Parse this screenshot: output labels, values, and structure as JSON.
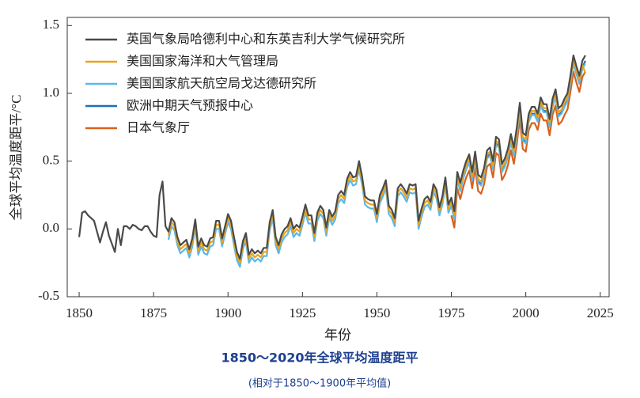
{
  "chart_data": {
    "type": "line",
    "title": "1850～2020年全球平均温度距平",
    "subtitle": "(相对于1850～1900年平均值)",
    "x_label": "年份",
    "y_label": "全球平均温度距平/°C",
    "xlim": [
      1846,
      2028
    ],
    "ylim": [
      -0.5,
      1.56
    ],
    "xticks": [
      1850,
      1875,
      1900,
      1925,
      1950,
      1975,
      2000,
      2025
    ],
    "yticks": [
      1.5,
      {
        "value": 1,
        "label": "1.0"
      },
      0.5,
      {
        "value": 0,
        "label": "0.0"
      },
      -0.5
    ],
    "legend": "upper left",
    "x": [
      1850,
      1851,
      1852,
      1853,
      1854,
      1855,
      1856,
      1857,
      1858,
      1859,
      1860,
      1861,
      1862,
      1863,
      1864,
      1865,
      1866,
      1867,
      1868,
      1869,
      1870,
      1871,
      1872,
      1873,
      1874,
      1875,
      1876,
      1877,
      1878,
      1879,
      1880,
      1881,
      1882,
      1883,
      1884,
      1885,
      1886,
      1887,
      1888,
      1889,
      1890,
      1891,
      1892,
      1893,
      1894,
      1895,
      1896,
      1897,
      1898,
      1899,
      1900,
      1901,
      1902,
      1903,
      1904,
      1905,
      1906,
      1907,
      1908,
      1909,
      1910,
      1911,
      1912,
      1913,
      1914,
      1915,
      1916,
      1917,
      1918,
      1919,
      1920,
      1921,
      1922,
      1923,
      1924,
      1925,
      1926,
      1927,
      1928,
      1929,
      1930,
      1931,
      1932,
      1933,
      1934,
      1935,
      1936,
      1937,
      1938,
      1939,
      1940,
      1941,
      1942,
      1943,
      1944,
      1945,
      1946,
      1947,
      1948,
      1949,
      1950,
      1951,
      1952,
      1953,
      1954,
      1955,
      1956,
      1957,
      1958,
      1959,
      1960,
      1961,
      1962,
      1963,
      1964,
      1965,
      1966,
      1967,
      1968,
      1969,
      1970,
      1971,
      1972,
      1973,
      1974,
      1975,
      1976,
      1977,
      1978,
      1979,
      1980,
      1981,
      1982,
      1983,
      1984,
      1985,
      1986,
      1987,
      1988,
      1989,
      1990,
      1991,
      1992,
      1993,
      1994,
      1995,
      1996,
      1997,
      1998,
      1999,
      2000,
      2001,
      2002,
      2003,
      2004,
      2005,
      2006,
      2007,
      2008,
      2009,
      2010,
      2011,
      2012,
      2013,
      2014,
      2015,
      2016,
      2017,
      2018,
      2019,
      2020
    ],
    "series": [
      {
        "name": "英国气象局哈德利中心和东英吉利大学气候研究所",
        "color": "#4a4a4a",
        "values": [
          -0.06,
          0.12,
          0.13,
          0.1,
          0.08,
          0.06,
          -0.02,
          -0.1,
          -0.02,
          0.05,
          -0.05,
          -0.11,
          -0.17,
          0.0,
          -0.12,
          0.02,
          0.02,
          0.0,
          0.03,
          0.02,
          0.0,
          -0.01,
          0.02,
          0.02,
          -0.02,
          -0.05,
          -0.06,
          0.25,
          0.35,
          0.02,
          -0.02,
          0.08,
          0.05,
          -0.06,
          -0.12,
          -0.1,
          -0.08,
          -0.15,
          -0.07,
          0.07,
          -0.13,
          -0.07,
          -0.12,
          -0.13,
          -0.07,
          -0.06,
          0.06,
          0.06,
          -0.07,
          0.02,
          0.11,
          0.06,
          -0.06,
          -0.17,
          -0.22,
          -0.09,
          -0.03,
          -0.19,
          -0.15,
          -0.18,
          -0.16,
          -0.18,
          -0.14,
          -0.14,
          0.05,
          0.14,
          -0.06,
          -0.12,
          -0.04,
          0.0,
          0.02,
          0.08,
          0.0,
          0.03,
          0.01,
          0.09,
          0.18,
          0.1,
          0.1,
          -0.03,
          0.12,
          0.17,
          0.14,
          0.01,
          0.14,
          0.09,
          0.13,
          0.25,
          0.28,
          0.25,
          0.37,
          0.42,
          0.38,
          0.39,
          0.5,
          0.39,
          0.24,
          0.22,
          0.21,
          0.21,
          0.11,
          0.25,
          0.3,
          0.36,
          0.17,
          0.14,
          0.08,
          0.3,
          0.33,
          0.3,
          0.26,
          0.33,
          0.32,
          0.33,
          0.06,
          0.15,
          0.22,
          0.24,
          0.2,
          0.33,
          0.29,
          0.16,
          0.24,
          0.38,
          0.18,
          0.23,
          0.13,
          0.42,
          0.34,
          0.43,
          0.5,
          0.55,
          0.42,
          0.57,
          0.4,
          0.38,
          0.45,
          0.58,
          0.6,
          0.5,
          0.68,
          0.66,
          0.48,
          0.52,
          0.59,
          0.7,
          0.6,
          0.75,
          0.93,
          0.71,
          0.69,
          0.85,
          0.9,
          0.9,
          0.85,
          0.97,
          0.92,
          0.92,
          0.81,
          0.96,
          1.03,
          0.89,
          0.91,
          0.96,
          1.0,
          1.13,
          1.28,
          1.2,
          1.13,
          1.24,
          1.28
        ]
      },
      {
        "name": "美国国家海洋和大气管理局",
        "color": "#e8a31c",
        "values": [
          null,
          null,
          null,
          null,
          null,
          null,
          null,
          null,
          null,
          null,
          null,
          null,
          null,
          null,
          null,
          null,
          null,
          null,
          null,
          null,
          null,
          null,
          null,
          null,
          null,
          null,
          null,
          null,
          null,
          null,
          -0.05,
          0.05,
          0.02,
          -0.09,
          -0.15,
          -0.13,
          -0.11,
          -0.18,
          -0.1,
          0.04,
          -0.16,
          -0.1,
          -0.15,
          -0.16,
          -0.1,
          -0.09,
          0.03,
          0.03,
          -0.1,
          -0.01,
          0.08,
          0.03,
          -0.09,
          -0.2,
          -0.25,
          -0.12,
          -0.06,
          -0.22,
          -0.18,
          -0.21,
          -0.19,
          -0.21,
          -0.17,
          -0.17,
          0.02,
          0.11,
          -0.09,
          -0.15,
          -0.07,
          -0.03,
          -0.01,
          0.05,
          -0.03,
          0.0,
          -0.02,
          0.06,
          0.15,
          0.07,
          0.07,
          -0.06,
          0.09,
          0.14,
          0.11,
          -0.02,
          0.11,
          0.06,
          0.1,
          0.22,
          0.25,
          0.22,
          0.34,
          0.39,
          0.35,
          0.36,
          0.47,
          0.36,
          0.21,
          0.19,
          0.18,
          0.18,
          0.08,
          0.22,
          0.27,
          0.33,
          0.14,
          0.11,
          0.05,
          0.27,
          0.3,
          0.27,
          0.23,
          0.3,
          0.29,
          0.3,
          0.03,
          0.12,
          0.19,
          0.21,
          0.17,
          0.3,
          0.26,
          0.13,
          0.21,
          0.35,
          0.15,
          0.2,
          0.1,
          0.39,
          0.31,
          0.4,
          0.47,
          0.52,
          0.39,
          0.54,
          0.37,
          0.35,
          0.42,
          0.55,
          0.57,
          0.47,
          0.65,
          0.63,
          0.45,
          0.49,
          0.56,
          0.67,
          0.57,
          0.72,
          0.9,
          0.68,
          0.66,
          0.82,
          0.87,
          0.87,
          0.82,
          0.94,
          0.89,
          0.89,
          0.78,
          0.93,
          1.0,
          0.86,
          0.88,
          0.93,
          0.97,
          1.1,
          1.25,
          1.17,
          1.1,
          1.21,
          1.15
        ]
      },
      {
        "name": "美国国家航天航空局戈达德研究所",
        "color": "#5ab8ea",
        "values": [
          null,
          null,
          null,
          null,
          null,
          null,
          null,
          null,
          null,
          null,
          null,
          null,
          null,
          null,
          null,
          null,
          null,
          null,
          null,
          null,
          null,
          null,
          null,
          null,
          null,
          null,
          null,
          null,
          null,
          null,
          -0.08,
          0.02,
          -0.01,
          -0.12,
          -0.18,
          -0.16,
          -0.14,
          -0.21,
          -0.13,
          0.01,
          -0.19,
          -0.13,
          -0.18,
          -0.19,
          -0.13,
          -0.12,
          0.0,
          0.0,
          -0.13,
          -0.04,
          0.05,
          0.0,
          -0.12,
          -0.23,
          -0.28,
          -0.15,
          -0.09,
          -0.25,
          -0.21,
          -0.24,
          -0.22,
          -0.24,
          -0.2,
          -0.2,
          -0.01,
          0.08,
          -0.12,
          -0.18,
          -0.1,
          -0.06,
          -0.04,
          0.02,
          -0.06,
          -0.03,
          -0.05,
          0.03,
          0.12,
          0.04,
          0.04,
          -0.09,
          0.06,
          0.11,
          0.08,
          -0.05,
          0.08,
          0.03,
          0.07,
          0.19,
          0.22,
          0.19,
          0.31,
          0.36,
          0.32,
          0.33,
          0.44,
          0.33,
          0.18,
          0.16,
          0.15,
          0.15,
          0.05,
          0.19,
          0.24,
          0.3,
          0.11,
          0.08,
          0.02,
          0.24,
          0.27,
          0.24,
          0.2,
          0.27,
          0.26,
          0.27,
          0.0,
          0.09,
          0.16,
          0.18,
          0.14,
          0.27,
          0.23,
          0.1,
          0.18,
          0.32,
          0.12,
          0.17,
          0.07,
          0.36,
          0.28,
          0.37,
          0.44,
          0.49,
          0.36,
          0.51,
          0.34,
          0.32,
          0.39,
          0.52,
          0.54,
          0.44,
          0.62,
          0.6,
          0.42,
          0.46,
          0.53,
          0.64,
          0.54,
          0.69,
          0.87,
          0.65,
          0.63,
          0.79,
          0.84,
          0.84,
          0.79,
          0.91,
          0.86,
          0.86,
          0.75,
          0.9,
          0.97,
          0.83,
          0.85,
          0.9,
          0.94,
          1.07,
          1.22,
          1.14,
          1.07,
          1.18,
          1.22
        ]
      },
      {
        "name": "欧洲中期天气预报中心",
        "color": "#1f6fb8",
        "values": [
          null,
          null,
          null,
          null,
          null,
          null,
          null,
          null,
          null,
          null,
          null,
          null,
          null,
          null,
          null,
          null,
          null,
          null,
          null,
          null,
          null,
          null,
          null,
          null,
          null,
          null,
          null,
          null,
          null,
          null,
          null,
          null,
          null,
          null,
          null,
          null,
          null,
          null,
          null,
          null,
          null,
          null,
          null,
          null,
          null,
          null,
          null,
          null,
          null,
          null,
          null,
          null,
          null,
          null,
          null,
          null,
          null,
          null,
          null,
          null,
          null,
          null,
          null,
          null,
          null,
          null,
          null,
          null,
          null,
          null,
          null,
          null,
          null,
          null,
          null,
          null,
          null,
          null,
          null,
          null,
          null,
          null,
          null,
          null,
          null,
          null,
          null,
          null,
          null,
          null,
          null,
          null,
          null,
          null,
          null,
          null,
          null,
          null,
          null,
          null,
          null,
          null,
          null,
          null,
          null,
          null,
          null,
          null,
          null,
          null,
          null,
          null,
          null,
          null,
          null,
          null,
          null,
          null,
          null,
          null,
          null,
          null,
          null,
          null,
          null,
          null,
          null,
          null,
          null,
          0.38,
          0.45,
          0.5,
          0.37,
          0.52,
          0.35,
          0.33,
          0.4,
          0.53,
          0.55,
          0.45,
          0.63,
          0.61,
          0.43,
          0.47,
          0.54,
          0.65,
          0.55,
          0.7,
          0.88,
          0.66,
          0.64,
          0.8,
          0.85,
          0.85,
          0.8,
          0.92,
          0.87,
          0.87,
          0.76,
          0.91,
          0.98,
          0.84,
          0.86,
          0.91,
          0.95,
          1.08,
          1.23,
          1.15,
          1.08,
          1.19,
          1.24
        ]
      },
      {
        "name": "日本气象厅",
        "color": "#d9601a",
        "values": [
          null,
          null,
          null,
          null,
          null,
          null,
          null,
          null,
          null,
          null,
          null,
          null,
          null,
          null,
          null,
          null,
          null,
          null,
          null,
          null,
          null,
          null,
          null,
          null,
          null,
          null,
          null,
          null,
          null,
          null,
          null,
          null,
          null,
          null,
          null,
          null,
          null,
          null,
          null,
          null,
          null,
          null,
          null,
          null,
          null,
          null,
          null,
          null,
          null,
          null,
          null,
          null,
          null,
          null,
          null,
          null,
          null,
          null,
          null,
          null,
          null,
          null,
          null,
          null,
          null,
          null,
          null,
          null,
          null,
          null,
          null,
          null,
          null,
          null,
          null,
          null,
          null,
          null,
          null,
          null,
          null,
          null,
          null,
          null,
          null,
          null,
          null,
          null,
          null,
          null,
          null,
          null,
          null,
          null,
          null,
          null,
          null,
          null,
          null,
          null,
          null,
          null,
          null,
          null,
          null,
          null,
          null,
          null,
          null,
          null,
          null,
          null,
          null,
          null,
          null,
          null,
          null,
          null,
          null,
          null,
          null,
          null,
          null,
          null,
          null,
          0.1,
          0.01,
          0.3,
          0.22,
          0.31,
          0.38,
          0.43,
          0.3,
          0.45,
          0.28,
          0.26,
          0.33,
          0.46,
          0.48,
          0.38,
          0.56,
          0.54,
          0.36,
          0.4,
          0.47,
          0.58,
          0.48,
          0.63,
          0.81,
          0.59,
          0.57,
          0.73,
          0.78,
          0.78,
          0.73,
          0.85,
          0.8,
          0.8,
          0.69,
          0.84,
          0.91,
          0.77,
          0.79,
          0.84,
          0.88,
          1.01,
          1.16,
          1.08,
          1.01,
          1.12,
          1.16
        ]
      }
    ]
  }
}
